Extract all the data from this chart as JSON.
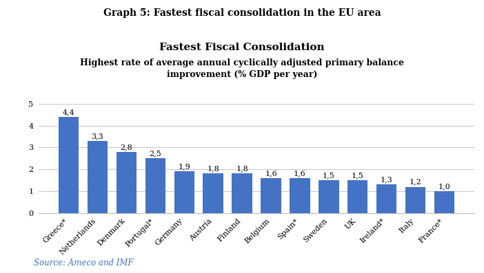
{
  "fig_title": "Graph 5: Fastest fiscal consolidation in the EU area",
  "chart_title": "Fastest Fiscal Consolidation",
  "chart_subtitle": "Highest rate of average annual cyclically adjusted primary balance\nimprovement (% GDP per year)",
  "source_text": "Source: Ameco and IMF",
  "categories": [
    "Greece*",
    "Netherlands",
    "Denmark",
    "Portugal*",
    "Germany",
    "Austria",
    "Finland",
    "Belgium",
    "Spain*",
    "Sweden",
    "UK",
    "Ireland*",
    "Italy",
    "France*"
  ],
  "values": [
    4.4,
    3.3,
    2.8,
    2.5,
    1.9,
    1.8,
    1.8,
    1.6,
    1.6,
    1.5,
    1.5,
    1.3,
    1.2,
    1.0
  ],
  "bar_color": "#4472C4",
  "ylim": [
    0,
    5.5
  ],
  "yticks": [
    0,
    1,
    2,
    3,
    4,
    5
  ],
  "background_color": "#ffffff",
  "grid_color": "#bbbbbb",
  "fig_title_fontsize": 10,
  "chart_title_fontsize": 11,
  "chart_subtitle_fontsize": 9,
  "label_fontsize": 8,
  "source_fontsize": 8.5,
  "tick_fontsize": 8,
  "source_color": "#4472C4"
}
